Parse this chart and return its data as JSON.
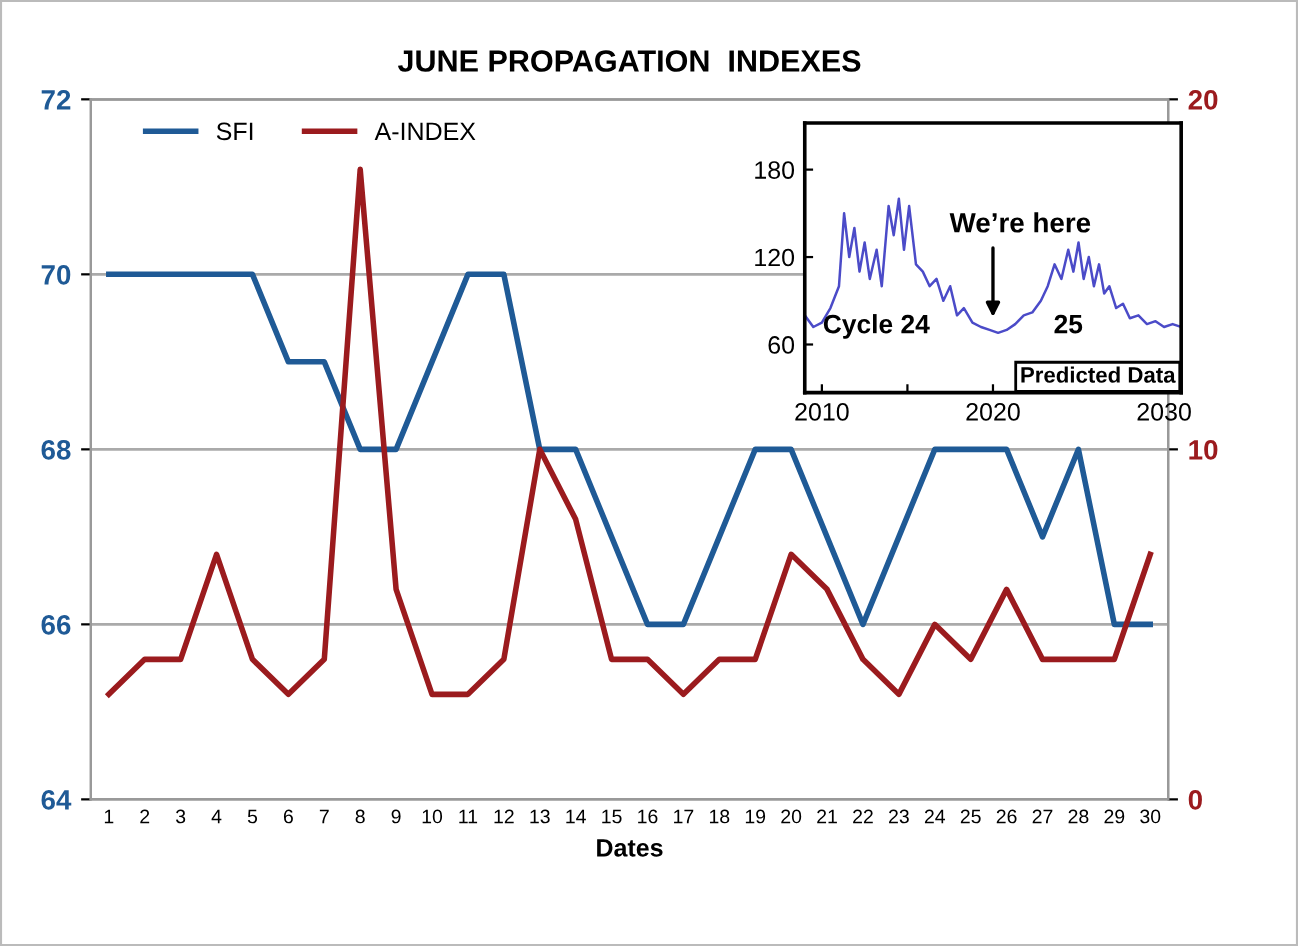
{
  "chart_data": [
    {
      "type": "line",
      "title": "JUNE PROPAGATION  INDEXES",
      "xlabel": "Dates",
      "categories": [
        "1",
        "2",
        "3",
        "4",
        "5",
        "6",
        "7",
        "8",
        "9",
        "10",
        "11",
        "12",
        "13",
        "14",
        "15",
        "16",
        "17",
        "18",
        "19",
        "20",
        "21",
        "22",
        "23",
        "24",
        "25",
        "26",
        "27",
        "28",
        "29",
        "30"
      ],
      "series": [
        {
          "name": "SFI",
          "color": "#1f5a96",
          "values": [
            70,
            70,
            70,
            70,
            70,
            69,
            69,
            68,
            68,
            69,
            70,
            70,
            68,
            68,
            67,
            66,
            66,
            67,
            68,
            68,
            67,
            66,
            67,
            68,
            68,
            68,
            67,
            68,
            66,
            66
          ]
        },
        {
          "name": "A-INDEX",
          "color": "#9b1b1e",
          "axis": "y2",
          "values": [
            3,
            4,
            4,
            7,
            4,
            3,
            4,
            18,
            6,
            3,
            3,
            4,
            10,
            8,
            4,
            4,
            3,
            4,
            4,
            7,
            6,
            4,
            3,
            5,
            4,
            6,
            4,
            4,
            4,
            7
          ]
        }
      ],
      "ylim": [
        64,
        72
      ],
      "yticks": [
        64,
        66,
        68,
        70,
        72
      ],
      "y2lim": [
        0,
        20
      ],
      "y2ticks": [
        0,
        10,
        20
      ],
      "grid": "y",
      "legend": "top left",
      "marker": "none",
      "line_style": "solid"
    },
    {
      "type": "line",
      "series": [
        {
          "color": "#4b4bc8",
          "x": [
            2009,
            2009.5,
            2010,
            2010.5,
            2011,
            2011.3,
            2011.6,
            2011.9,
            2012.2,
            2012.5,
            2012.8,
            2013.2,
            2013.5,
            2013.9,
            2014.2,
            2014.5,
            2014.8,
            2015.1,
            2015.5,
            2015.9,
            2016.3,
            2016.7,
            2017.1,
            2017.5,
            2017.9,
            2018.3,
            2018.8,
            2019.3,
            2019.8,
            2020.3,
            2020.8,
            2021.3,
            2021.8,
            2022.3,
            2022.8,
            2023.2,
            2023.6,
            2024,
            2024.4,
            2024.7,
            2025,
            2025.3,
            2025.6,
            2025.9,
            2026.2,
            2026.5,
            2026.8,
            2027.2,
            2027.6,
            2028,
            2028.5,
            2029,
            2029.5,
            2030,
            2030.5,
            2031
          ],
          "values": [
            80,
            72,
            75,
            85,
            100,
            150,
            120,
            140,
            110,
            130,
            105,
            125,
            100,
            155,
            135,
            160,
            125,
            155,
            115,
            110,
            100,
            105,
            90,
            100,
            80,
            85,
            75,
            72,
            70,
            68,
            70,
            74,
            80,
            82,
            90,
            100,
            115,
            105,
            125,
            110,
            130,
            105,
            120,
            100,
            115,
            95,
            100,
            85,
            88,
            78,
            80,
            74,
            76,
            72,
            74,
            72
          ]
        }
      ],
      "xlim": [
        2009,
        2031
      ],
      "xticks": [
        2010,
        {
          "value": 2015,
          "label": null
        },
        2020,
        {
          "value": 2025,
          "label": null
        },
        2030
      ],
      "ylim": [
        27,
        212
      ],
      "yticks": [
        60,
        120,
        180
      ],
      "annotations": [
        {
          "text": "We’re here",
          "x": 2020,
          "y": 75
        },
        "Cycle 24",
        "25",
        "Predicted Data"
      ]
    }
  ]
}
